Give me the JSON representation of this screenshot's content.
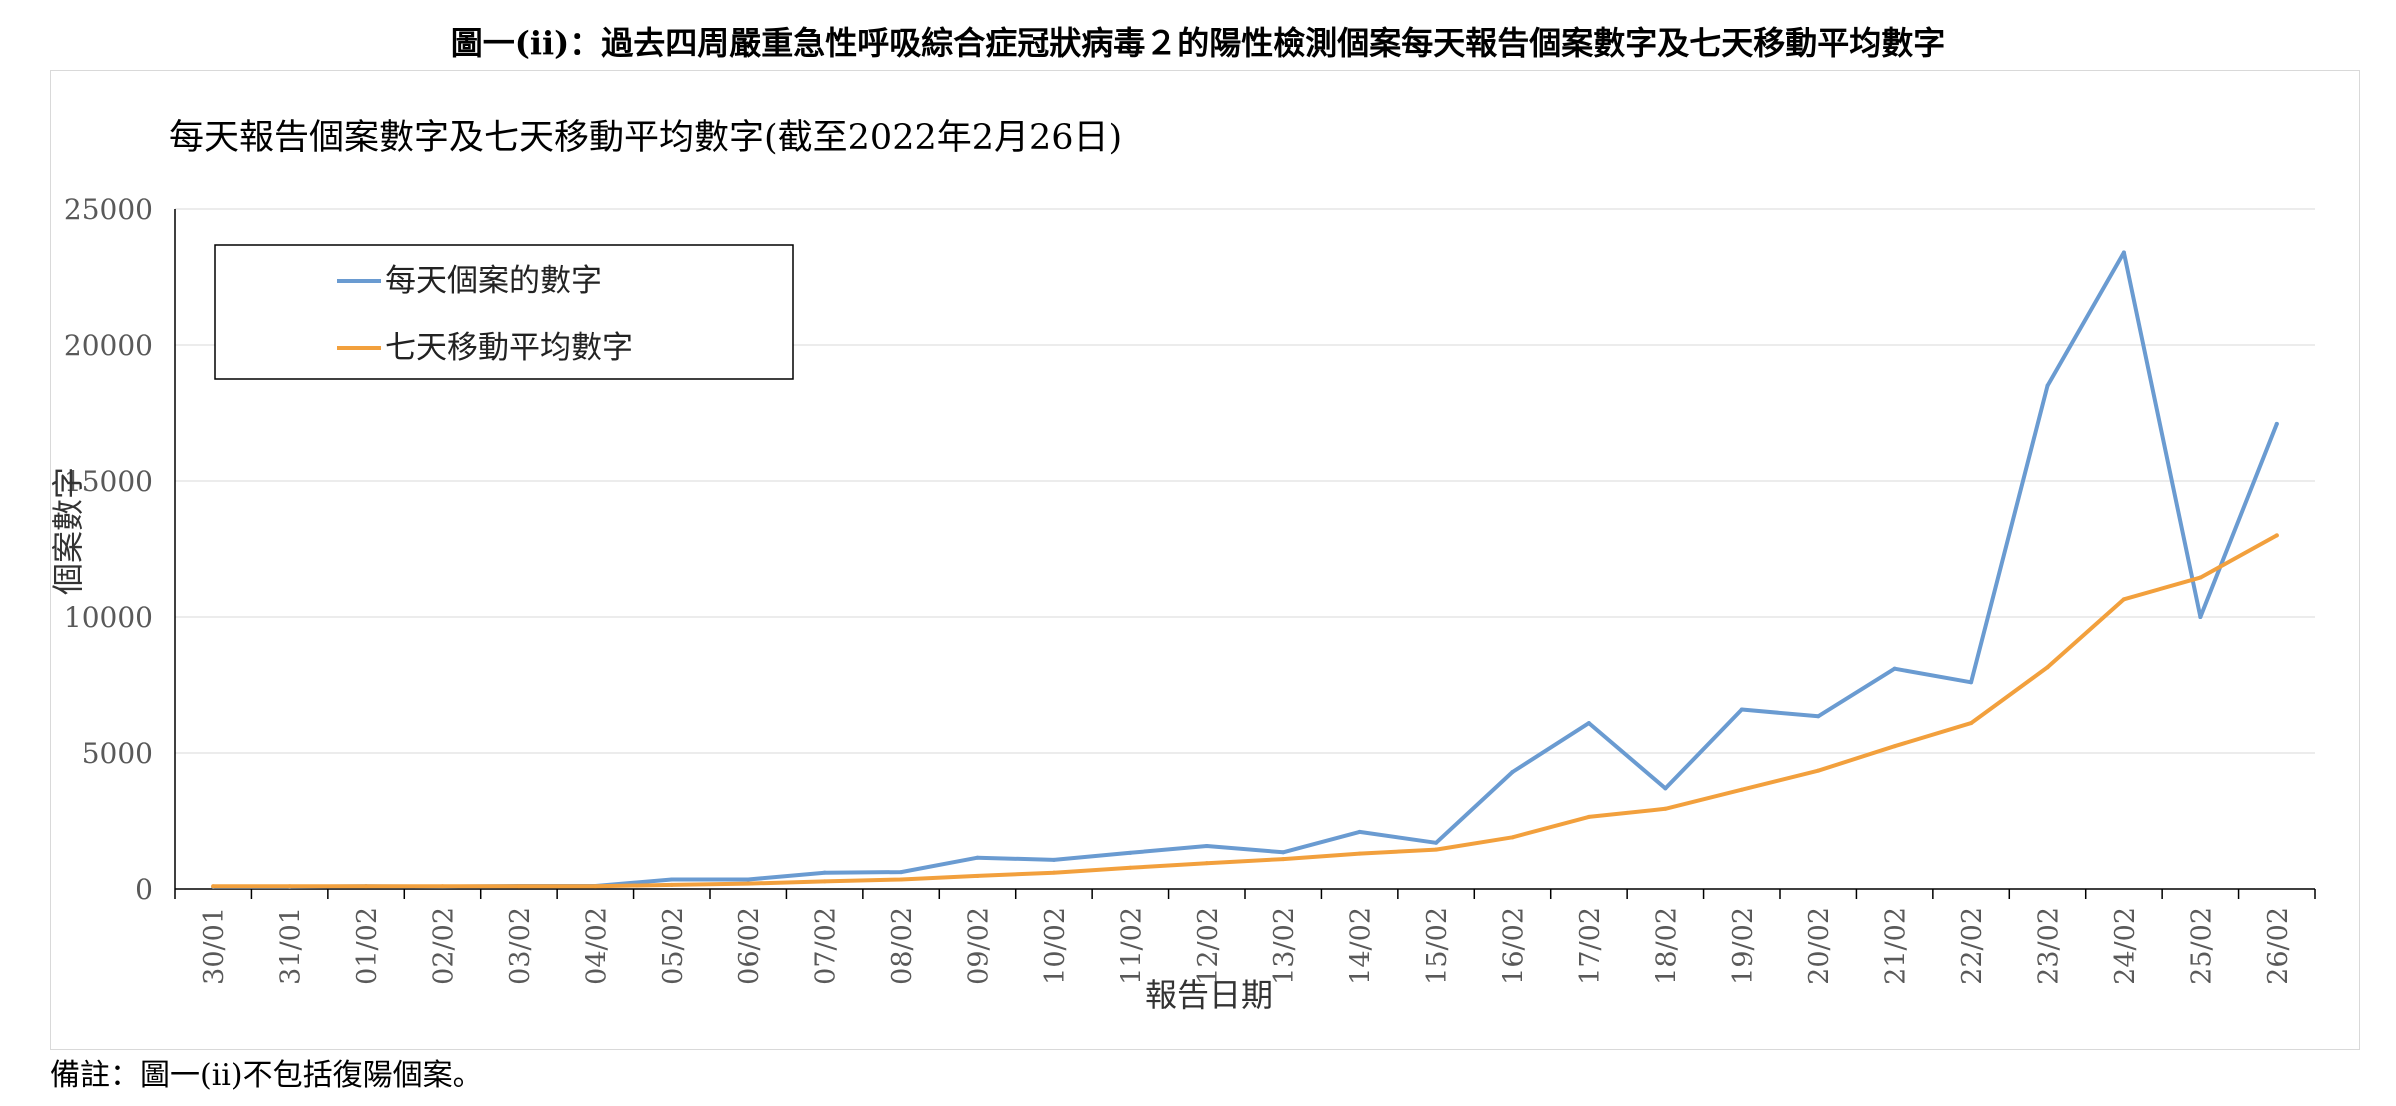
{
  "figure_title": "圖一(ii)：過去四周嚴重急性呼吸綜合症冠狀病毒２的陽性檢測個案每天報告個案數字及七天移動平均數字",
  "footnote": "備註：圖一(ii)不包括復陽個案。",
  "colors": {
    "daily": "#6a9bd1",
    "avg": "#f2a03d",
    "grid": "#e6e6e6",
    "axis": "#000000"
  },
  "chart_data": {
    "type": "line",
    "title": "每天報告個案數字及七天移動平均數字(截至2022年2月26日)",
    "xlabel": "報告日期",
    "ylabel": "個案數字",
    "ylim": [
      0,
      25000
    ],
    "yticks": [
      0,
      5000,
      10000,
      15000,
      20000,
      25000
    ],
    "grid": true,
    "legend_position": "top-left",
    "categories": [
      "30/01",
      "31/01",
      "01/02",
      "02/02",
      "03/02",
      "04/02",
      "05/02",
      "06/02",
      "07/02",
      "08/02",
      "09/02",
      "10/02",
      "11/02",
      "12/02",
      "13/02",
      "14/02",
      "15/02",
      "16/02",
      "17/02",
      "18/02",
      "19/02",
      "20/02",
      "21/02",
      "22/02",
      "23/02",
      "24/02",
      "25/02",
      "26/02"
    ],
    "series": [
      {
        "name": "每天個案的數字",
        "color": "#6a9bd1",
        "values": [
          80,
          80,
          100,
          90,
          110,
          110,
          350,
          350,
          600,
          620,
          1150,
          1070,
          1330,
          1580,
          1350,
          2100,
          1700,
          4300,
          6100,
          3700,
          6600,
          6350,
          8100,
          7600,
          18500,
          23400,
          10000,
          17100
        ]
      },
      {
        "name": "七天移動平均數字",
        "color": "#f2a03d",
        "values": [
          100,
          100,
          100,
          100,
          100,
          100,
          150,
          200,
          280,
          350,
          480,
          600,
          780,
          950,
          1100,
          1300,
          1450,
          1900,
          2650,
          2950,
          3650,
          4350,
          5250,
          6100,
          8150,
          10650,
          11450,
          13000
        ]
      }
    ]
  }
}
